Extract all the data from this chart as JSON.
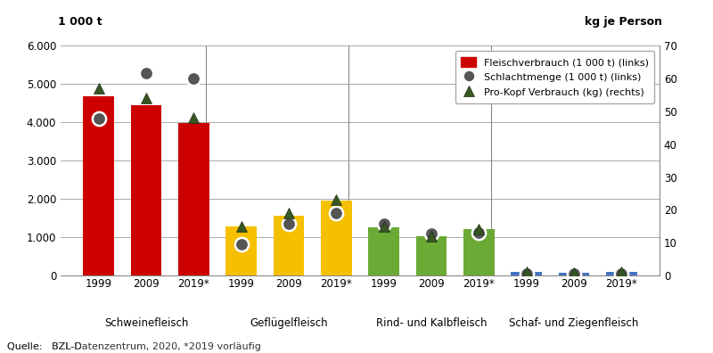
{
  "categories": [
    {
      "name": "Schweinefleisch",
      "color": "#cc0000",
      "years": [
        "1999",
        "2009",
        "2019*"
      ],
      "fleischverbrauch": [
        4680,
        4450,
        3980
      ],
      "schlachtmenge": [
        4100,
        5300,
        5150
      ],
      "prokopf": [
        57,
        54,
        48
      ]
    },
    {
      "name": "Geflügelfleisch",
      "color": "#f5c000",
      "years": [
        "1999",
        "2009",
        "2019*"
      ],
      "fleischverbrauch": [
        1270,
        1570,
        1950
      ],
      "schlachtmenge": [
        820,
        1340,
        1640
      ],
      "prokopf": [
        15,
        19,
        23
      ]
    },
    {
      "name": "Rind- und Kalbfleisch",
      "color": "#6aaa35",
      "years": [
        "1999",
        "2009",
        "2019*"
      ],
      "fleischverbrauch": [
        1260,
        1030,
        1210
      ],
      "schlachtmenge": [
        1340,
        1090,
        1110
      ],
      "prokopf": [
        15,
        12,
        14
      ]
    },
    {
      "name": "Schaf- und Ziegenfleisch",
      "color": "#4472c4",
      "years": [
        "1999",
        "2009",
        "2019*"
      ],
      "fleischverbrauch": [
        95,
        70,
        95
      ],
      "schlachtmenge": [
        55,
        40,
        50
      ],
      "prokopf": [
        1.1,
        0.9,
        1.1
      ]
    }
  ],
  "ylim_left": [
    0,
    6000
  ],
  "ylim_right": [
    0,
    70
  ],
  "yticks_left": [
    0,
    1000,
    2000,
    3000,
    4000,
    5000,
    6000
  ],
  "ytick_labels_left": [
    "0",
    "1.000",
    "2.000",
    "3.000",
    "4.000",
    "5.000",
    "6.000"
  ],
  "yticks_right": [
    0,
    10,
    20,
    30,
    40,
    50,
    60,
    70
  ],
  "ylabel_left": "1 000 t",
  "ylabel_right": "kg je Person",
  "source_text": "Quelle:   BZL-Dᴀᴛᴇɴzᴇɴᴛʀᴜᴍ, 2020, *2019 vorläufig",
  "schlachtmenge_color": "#555555",
  "prokopf_color": "#375623",
  "bar_width": 0.65
}
